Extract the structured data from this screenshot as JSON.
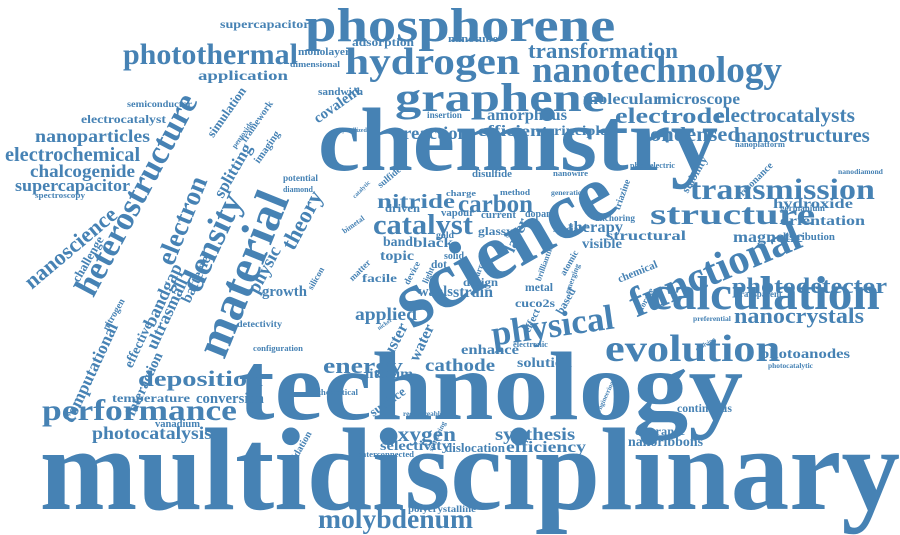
{
  "colors": {
    "text": "#4682b4",
    "background": "#ffffff"
  },
  "words": [
    "multidisciplinary",
    "technology",
    "science",
    "chemistry",
    "material",
    "functional",
    "phosphorene",
    "nanotechnology",
    "graphene",
    "hydrogen",
    "physical",
    "calculation",
    "evolution",
    "heterostructure",
    "structure",
    "transmission",
    "photothermal",
    "performance",
    "molybdenum",
    "density",
    "nanoscience",
    "electron",
    "deposition",
    "photodetector",
    "nanocrystals",
    "electrode",
    "electrocatalysts",
    "nanostructures",
    "condensed",
    "transformation",
    "electrochemical",
    "chalcogenide",
    "supercapacitor",
    "nanoparticles",
    "catalyst",
    "carbon",
    "nitride",
    "theory",
    "physic",
    "covalent",
    "energy",
    "cluster",
    "water",
    "cathode",
    "solution",
    "synthesis",
    "efficiency",
    "oxygen",
    "selectivity",
    "dislocation",
    "photocatalysis",
    "conversion",
    "temperature",
    "bandgap",
    "ultrasmall",
    "batterie",
    "effective",
    "interaction",
    "computational",
    "splitting",
    "framework",
    "simulation",
    "application",
    "supercapacitors",
    "amorphous",
    "efficient",
    "principle",
    "reaction",
    "molecular",
    "microscope",
    "resonance",
    "stability",
    "hydroxide",
    "magnetic",
    "orientation",
    "photoanodes",
    "nanoribbons",
    "lithium",
    "applied",
    "surface",
    "growth",
    "strain",
    "enhance",
    "chemical",
    "structural",
    "visible",
    "therapy",
    "adsorption",
    "nanotube",
    "monolayer",
    "dimensional",
    "sandwich",
    "semiconductor",
    "electrocatalyst",
    "spectroscopy",
    "vanadium",
    "nitrogen",
    "challenge",
    "oxidation",
    "sputtering",
    "polycrystalline",
    "clearance",
    "continuous",
    "photocatalytic",
    "nanodiamond",
    "nanoplatform",
    "germanium",
    "distribution",
    "triazine",
    "storage",
    "evolving",
    "transparent",
    "layer",
    "black",
    "band",
    "topic",
    "matter",
    "driven",
    "glassy",
    "design",
    "waals",
    "cuco2s",
    "based",
    "atomic",
    "imaging",
    "pentoxide",
    "insertion",
    "crystallized",
    "potential",
    "diamond",
    "sulfide",
    "vapour",
    "current",
    "dopant",
    "special",
    "anchoring",
    "nickel",
    "disulfide",
    "dot",
    "light",
    "metal",
    "electronic",
    "detectivity",
    "configuration",
    "rechargeable",
    "array",
    "brilliantin",
    "effect",
    "catalytic",
    "facile",
    "device",
    "bimetal",
    "charge",
    "method",
    "solid",
    "silicon",
    "generation",
    "interconnected",
    "theoretical",
    "engineering",
    "preferential",
    "nanowire",
    "emerging",
    "gold",
    "photoelectric"
  ]
}
